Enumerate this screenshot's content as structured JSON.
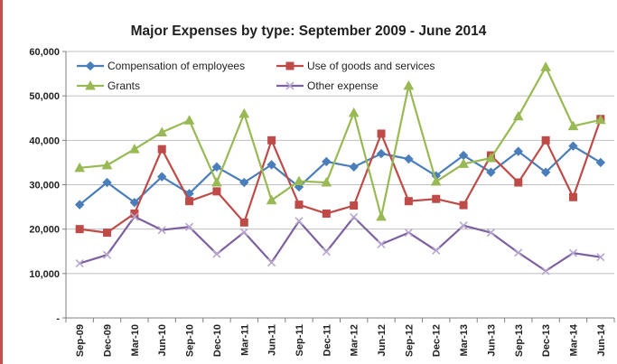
{
  "chart_data": {
    "type": "line",
    "title": "Major Expenses by type: September 2009 - June 2014",
    "xlabel": "",
    "ylabel": "",
    "ylim": [
      0,
      60000
    ],
    "yticks": [
      0,
      10000,
      20000,
      30000,
      40000,
      50000,
      60000
    ],
    "ytick_labels": [
      "-",
      "10,000",
      "20,000",
      "30,000",
      "40,000",
      "50,000",
      "60,000"
    ],
    "grid": true,
    "legend_position": "top",
    "categories": [
      "Sep-09",
      "Dec-09",
      "Mar-10",
      "Jun-10",
      "Sep-10",
      "Dec-10",
      "Mar-11",
      "Jun-11",
      "Sep-11",
      "Dec-11",
      "Mar-12",
      "Jun-12",
      "Sep-12",
      "Dec-12",
      "Mar-13",
      "Jun-13",
      "Sep-13",
      "Dec-13",
      "Mar-14",
      "Jun-14"
    ],
    "series": [
      {
        "name": "Compensation of employees",
        "color": "#4a7ebb",
        "marker": "diamond",
        "values": [
          25500,
          30500,
          26000,
          31800,
          28000,
          34000,
          30500,
          34500,
          29500,
          35200,
          34000,
          37000,
          35800,
          32000,
          36600,
          32800,
          37500,
          32800,
          38700,
          35000
        ]
      },
      {
        "name": "Use of goods and services",
        "color": "#be4b48",
        "marker": "square",
        "values": [
          20000,
          19200,
          23500,
          38000,
          26300,
          28500,
          21500,
          40000,
          25500,
          23500,
          25300,
          41500,
          26300,
          26800,
          25400,
          36600,
          30500,
          40000,
          27200,
          44800
        ]
      },
      {
        "name": "Grants",
        "color": "#98b954",
        "marker": "triangle",
        "values": [
          33800,
          34400,
          38000,
          41800,
          44500,
          30500,
          46000,
          26500,
          30800,
          30500,
          46200,
          22800,
          52300,
          30700,
          34700,
          36000,
          45400,
          56500,
          43200,
          44600
        ]
      },
      {
        "name": "Other expense",
        "color": "#7d60a0",
        "marker": "x",
        "values": [
          12300,
          14200,
          22800,
          19800,
          20500,
          14400,
          19300,
          12500,
          21800,
          14900,
          22700,
          16600,
          19200,
          15200,
          20800,
          19200,
          14700,
          10600,
          14600,
          13700
        ]
      }
    ]
  }
}
